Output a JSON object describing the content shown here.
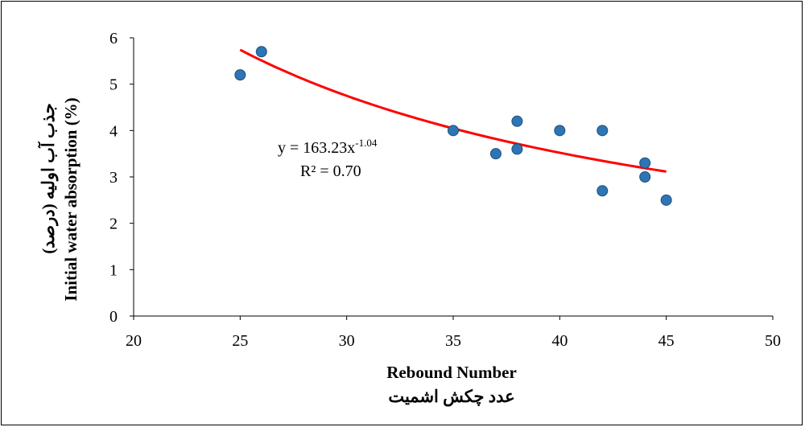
{
  "chart_data": {
    "type": "scatter",
    "title": "",
    "xlabel": "Rebound Number",
    "xlabel_fa": "عدد چکش اشمیت",
    "ylabel": "Initial water absorption (%)",
    "ylabel_fa": "جذب آب اولیه (درصد)",
    "xlim": [
      20,
      50
    ],
    "ylim": [
      0,
      6
    ],
    "xticks": [
      20,
      25,
      30,
      35,
      40,
      45,
      50
    ],
    "yticks": [
      0,
      1,
      2,
      3,
      4,
      5,
      6
    ],
    "grid": false,
    "series": [
      {
        "x": [
          25,
          26,
          35,
          37,
          38,
          38,
          40,
          42,
          42,
          44,
          44,
          45
        ],
        "y": [
          5.2,
          5.7,
          4.0,
          3.5,
          4.2,
          3.6,
          4.0,
          4.0,
          2.7,
          3.3,
          3.0,
          2.5
        ],
        "color": "#2E75B6"
      }
    ],
    "trendline": {
      "type": "power",
      "coefficient": 163.23,
      "exponent": -1.04,
      "x_range": [
        25,
        45
      ],
      "color": "#FF0000",
      "equation_text": "y = 163.23x",
      "equation_exponent": "-1.04",
      "r2_text": "R² = 0.70"
    }
  }
}
